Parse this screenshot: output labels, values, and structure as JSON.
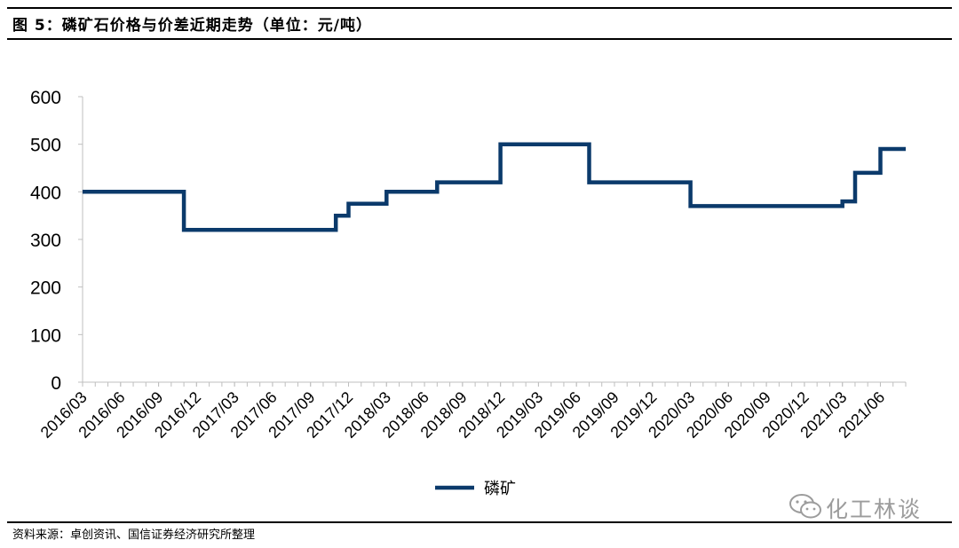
{
  "header": {
    "title": "图 5：磷矿石价格与价差近期走势（单位：元/吨）"
  },
  "chart_data": {
    "type": "line",
    "title": "",
    "xlabel": "",
    "ylabel": "",
    "ylim": [
      0,
      600
    ],
    "yticks": [
      0,
      100,
      200,
      300,
      400,
      500,
      600
    ],
    "xlim": [
      "2016/03",
      "2021/08"
    ],
    "xticks": [
      "2016/03",
      "2016/06",
      "2016/09",
      "2016/12",
      "2017/03",
      "2017/06",
      "2017/09",
      "2017/12",
      "2018/03",
      "2018/06",
      "2018/09",
      "2018/12",
      "2019/03",
      "2019/06",
      "2019/09",
      "2019/12",
      "2020/03",
      "2020/06",
      "2020/09",
      "2020/12",
      "2021/03",
      "2021/06"
    ],
    "grid": false,
    "legend_position": "bottom",
    "color": "#0b3a6b",
    "series": [
      {
        "name": "磷矿",
        "step": "post",
        "points": [
          [
            "2016/03",
            400
          ],
          [
            "2016/11",
            320
          ],
          [
            "2017/11",
            350
          ],
          [
            "2017/12",
            375
          ],
          [
            "2018/03",
            400
          ],
          [
            "2018/07",
            420
          ],
          [
            "2018/12",
            500
          ],
          [
            "2019/07",
            420
          ],
          [
            "2020/03",
            370
          ],
          [
            "2021/03",
            380
          ],
          [
            "2021/04",
            440
          ],
          [
            "2021/06",
            490
          ],
          [
            "2021/08",
            490
          ]
        ]
      }
    ]
  },
  "footer": {
    "source": "资料来源：卓创资讯、国信证券经济研究所整理"
  },
  "watermark": {
    "text": "化工林谈",
    "icon": "wechat-icon"
  }
}
